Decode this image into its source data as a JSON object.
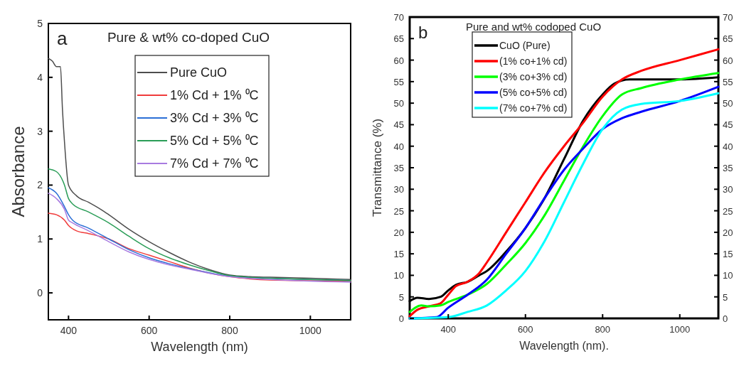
{
  "chart_data": [
    {
      "type": "line",
      "title": "Pure & wt% co-doped CuO",
      "annotations": [
        "a"
      ],
      "xlabel": "Wavelength (nm)",
      "ylabel": "Absorbance",
      "xlim": [
        350,
        1100
      ],
      "ylim": [
        -0.5,
        5
      ],
      "xticks": [
        400,
        600,
        800,
        1000
      ],
      "yticks": [
        0,
        1,
        2,
        3,
        4,
        5
      ],
      "legend": "top right",
      "grid": false,
      "series": [
        {
          "name": "Pure CuO",
          "color": "#4d4d4d",
          "x": [
            350,
            360,
            370,
            380,
            385,
            390,
            400,
            420,
            450,
            480,
            500,
            550,
            600,
            650,
            700,
            750,
            800,
            850,
            900,
            1000,
            1100
          ],
          "values": [
            4.35,
            4.3,
            4.2,
            4.2,
            3.4,
            2.8,
            2.0,
            1.8,
            1.68,
            1.55,
            1.45,
            1.18,
            0.95,
            0.75,
            0.57,
            0.43,
            0.33,
            0.3,
            0.29,
            0.27,
            0.25
          ]
        },
        {
          "name": "1% Cd + 1% ⁰C",
          "color": "#f03c3c",
          "x": [
            350,
            370,
            390,
            400,
            420,
            450,
            500,
            550,
            600,
            650,
            700,
            800,
            850,
            900,
            1100
          ],
          "values": [
            1.48,
            1.45,
            1.35,
            1.25,
            1.15,
            1.1,
            1.0,
            0.82,
            0.7,
            0.58,
            0.46,
            0.3,
            0.26,
            0.24,
            0.22
          ]
        },
        {
          "name": "3% Cd + 3% ⁰C",
          "color": "#2b6fd6",
          "x": [
            350,
            370,
            390,
            400,
            410,
            450,
            500,
            550,
            600,
            650,
            700,
            800,
            900,
            1100
          ],
          "values": [
            1.95,
            1.85,
            1.6,
            1.45,
            1.35,
            1.2,
            1.0,
            0.8,
            0.65,
            0.54,
            0.45,
            0.31,
            0.27,
            0.23
          ]
        },
        {
          "name": "5% Cd + 5% ⁰C",
          "color": "#2a9d57",
          "x": [
            350,
            370,
            390,
            400,
            410,
            450,
            500,
            550,
            600,
            650,
            700,
            750,
            800,
            900,
            1000,
            1100
          ],
          "values": [
            2.3,
            2.25,
            2.0,
            1.75,
            1.65,
            1.5,
            1.3,
            1.05,
            0.82,
            0.65,
            0.52,
            0.41,
            0.32,
            0.27,
            0.25,
            0.23
          ]
        },
        {
          "name": "7% Cd + 7% ⁰C",
          "color": "#a87be0",
          "x": [
            350,
            370,
            390,
            400,
            410,
            450,
            500,
            550,
            600,
            650,
            700,
            800,
            900,
            1100
          ],
          "values": [
            1.85,
            1.75,
            1.55,
            1.35,
            1.3,
            1.15,
            0.95,
            0.76,
            0.62,
            0.52,
            0.44,
            0.3,
            0.25,
            0.2
          ]
        }
      ]
    },
    {
      "type": "line",
      "title": "Pure and wt% codoped CuO",
      "annotations": [
        "b"
      ],
      "xlabel": "Wavelength (nm).",
      "ylabel": "Transmittance (%)",
      "xlim": [
        300,
        1100
      ],
      "ylim": [
        0,
        70
      ],
      "xticks": [
        400,
        600,
        800,
        1000
      ],
      "yticks": [
        0,
        5,
        10,
        15,
        20,
        25,
        30,
        35,
        40,
        45,
        50,
        55,
        60,
        65,
        70
      ],
      "y2lim": [
        0,
        70
      ],
      "y2ticks": [
        0,
        5,
        10,
        15,
        20,
        25,
        30,
        35,
        40,
        45,
        50,
        55,
        60,
        65,
        70
      ],
      "legend": "top",
      "grid": false,
      "series": [
        {
          "name": "CuO (Pure)",
          "color": "#000000",
          "x": [
            300,
            320,
            350,
            380,
            400,
            420,
            450,
            480,
            500,
            550,
            600,
            650,
            700,
            750,
            800,
            830,
            870,
            1000,
            1100
          ],
          "values": [
            4,
            4.8,
            4.5,
            5,
            6.5,
            7.8,
            8.5,
            10,
            11,
            15.5,
            21,
            28,
            37,
            46,
            52,
            54.5,
            55.5,
            55.5,
            56
          ]
        },
        {
          "name": "(1% co+1% cd)",
          "color": "#ff0000",
          "x": [
            300,
            320,
            350,
            380,
            400,
            420,
            450,
            480,
            500,
            550,
            600,
            650,
            700,
            750,
            800,
            850,
            900,
            1000,
            1100
          ],
          "values": [
            0.5,
            2,
            2.8,
            3.5,
            5.5,
            7.5,
            8.5,
            10.5,
            13,
            20,
            27,
            34,
            40,
            45.5,
            51.5,
            55.5,
            57.5,
            60,
            62.5
          ]
        },
        {
          "name": "(3% co+3% cd)",
          "color": "#00ff00",
          "x": [
            300,
            330,
            350,
            380,
            400,
            450,
            500,
            550,
            600,
            650,
            700,
            750,
            800,
            850,
            900,
            1000,
            1100
          ],
          "values": [
            1.5,
            3,
            2.8,
            3,
            3.8,
            5.5,
            8,
            12.5,
            17.5,
            24,
            32,
            40,
            47,
            52,
            53.5,
            55.5,
            57
          ]
        },
        {
          "name": "(5% co+5% cd)",
          "color": "#0000ff",
          "x": [
            300,
            370,
            400,
            450,
            500,
            550,
            600,
            650,
            700,
            750,
            800,
            850,
            900,
            1000,
            1100
          ],
          "values": [
            0,
            0.3,
            2.5,
            5.5,
            9,
            15,
            21,
            28,
            34.5,
            39.5,
            44,
            46.5,
            48,
            50.5,
            53.8
          ]
        },
        {
          "name": "(7% co+7% cd)",
          "color": "#00ffff",
          "x": [
            300,
            400,
            450,
            500,
            550,
            600,
            650,
            700,
            750,
            800,
            850,
            900,
            1000,
            1100
          ],
          "values": [
            0,
            0.3,
            1.5,
            3,
            6.5,
            11,
            18,
            27,
            36,
            44,
            48.5,
            49.8,
            50.5,
            52.3
          ]
        }
      ]
    }
  ]
}
